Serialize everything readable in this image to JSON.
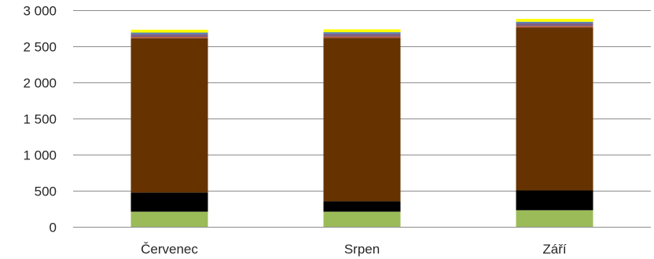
{
  "chart_data": {
    "type": "bar",
    "stacked": true,
    "title": "",
    "xlabel": "",
    "ylabel": "",
    "ylim": [
      0,
      3000
    ],
    "y_ticks": [
      0,
      500,
      1000,
      1500,
      2000,
      2500,
      3000
    ],
    "y_tick_labels": [
      "0",
      "500",
      "1 000",
      "1 500",
      "2 000",
      "2 500",
      "3 000"
    ],
    "grid": true,
    "legend": "none",
    "categories": [
      "Červenec",
      "Srpen",
      "Září"
    ],
    "series": [
      {
        "color": "#9bbb59",
        "values": [
          210,
          210,
          230
        ]
      },
      {
        "color": "#000000",
        "values": [
          265,
          145,
          275
        ]
      },
      {
        "color": "#663300",
        "values": [
          2135,
          2260,
          2255
        ]
      },
      {
        "color": "#b35a3a",
        "values": [
          20,
          20,
          20
        ]
      },
      {
        "color": "#7f6084",
        "values": [
          40,
          40,
          40
        ]
      },
      {
        "color": "#4f81bd",
        "values": [
          20,
          20,
          20
        ]
      },
      {
        "color": "#ffff00",
        "values": [
          40,
          40,
          40
        ]
      }
    ]
  }
}
